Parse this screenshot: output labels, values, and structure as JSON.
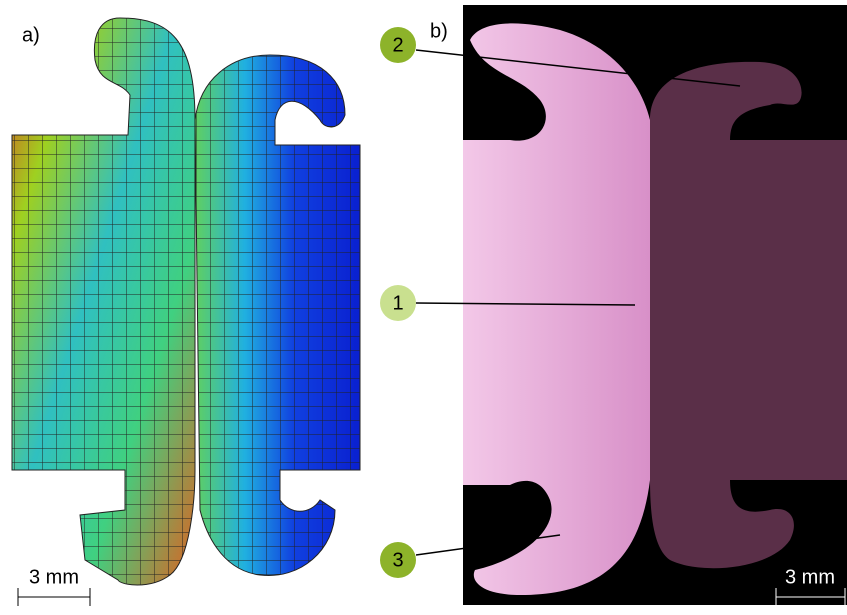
{
  "panel_a": {
    "label": "a)",
    "scale_bar": "3 mm"
  },
  "panel_b": {
    "label": "b)",
    "markers": [
      "1",
      "2",
      "3"
    ],
    "scale_bar": "3 mm"
  }
}
